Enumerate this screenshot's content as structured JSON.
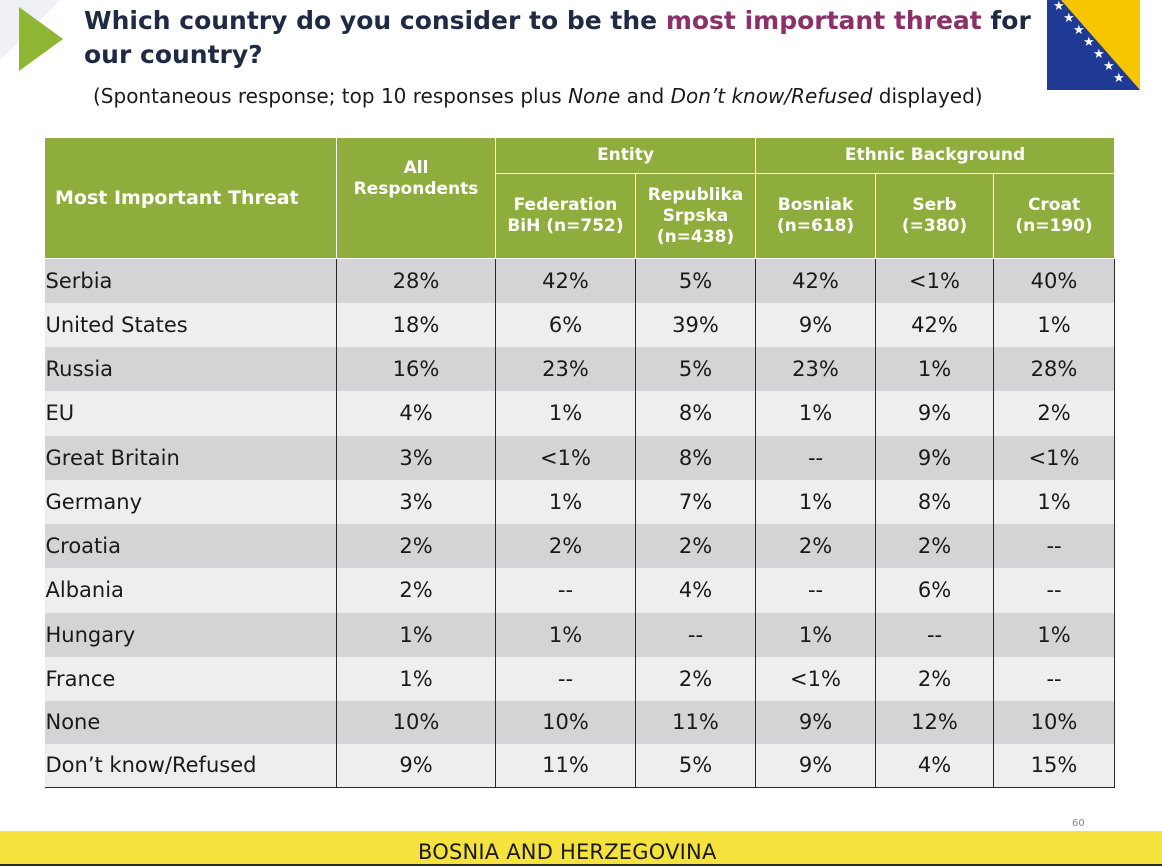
{
  "title": {
    "part1": "Which country do you consider to be the ",
    "highlight": "most important threat",
    "part2": " for our country?"
  },
  "subtitle": {
    "part1": "(Spontaneous response; top 10 responses plus ",
    "em1": "None",
    "part2": " and ",
    "em2": "Don’t know/Refused",
    "part3": " displayed)"
  },
  "table": {
    "threat_header": "Most Important Threat",
    "all_header": "All Respondents",
    "group_entity": "Entity",
    "group_ethnic": "Ethnic Background",
    "sub_headers": [
      "Federation BiH (n=752)",
      "Republika Srpska (n=438)",
      "Bosniak (n=618)",
      "Serb (=380)",
      "Croat (n=190)"
    ],
    "rows": [
      {
        "country": "Serbia",
        "values": [
          "28%",
          "42%",
          "5%",
          "42%",
          "<1%",
          "40%"
        ]
      },
      {
        "country": "United States",
        "values": [
          "18%",
          "6%",
          "39%",
          "9%",
          "42%",
          "1%"
        ]
      },
      {
        "country": "Russia",
        "values": [
          "16%",
          "23%",
          "5%",
          "23%",
          "1%",
          "28%"
        ]
      },
      {
        "country": "EU",
        "values": [
          "4%",
          "1%",
          "8%",
          "1%",
          "9%",
          "2%"
        ]
      },
      {
        "country": "Great Britain",
        "values": [
          "3%",
          "<1%",
          "8%",
          "--",
          "9%",
          "<1%"
        ]
      },
      {
        "country": "Germany",
        "values": [
          "3%",
          "1%",
          "7%",
          "1%",
          "8%",
          "1%"
        ]
      },
      {
        "country": "Croatia",
        "values": [
          "2%",
          "2%",
          "2%",
          "2%",
          "2%",
          "--"
        ]
      },
      {
        "country": "Albania",
        "values": [
          "2%",
          "--",
          "4%",
          "--",
          "6%",
          "--"
        ]
      },
      {
        "country": "Hungary",
        "values": [
          "1%",
          "1%",
          "--",
          "1%",
          "--",
          "1%"
        ]
      },
      {
        "country": "France",
        "values": [
          "1%",
          "--",
          "2%",
          "<1%",
          "2%",
          "--"
        ]
      },
      {
        "country": "None",
        "values": [
          "10%",
          "10%",
          "11%",
          "9%",
          "12%",
          "10%"
        ]
      },
      {
        "country": "Don’t know/Refused",
        "values": [
          "9%",
          "11%",
          "5%",
          "9%",
          "4%",
          "15%"
        ]
      }
    ]
  },
  "page_number": "60",
  "footer": "BOSNIA AND HERZEGOVINA",
  "colors": {
    "accent_green": "#8fad3c",
    "title_navy": "#1f2a44",
    "highlight_purple": "#8a3168",
    "footer_yellow": "#f6e23c",
    "flag_blue": "#1e3a94",
    "flag_yellow": "#f7c600"
  }
}
